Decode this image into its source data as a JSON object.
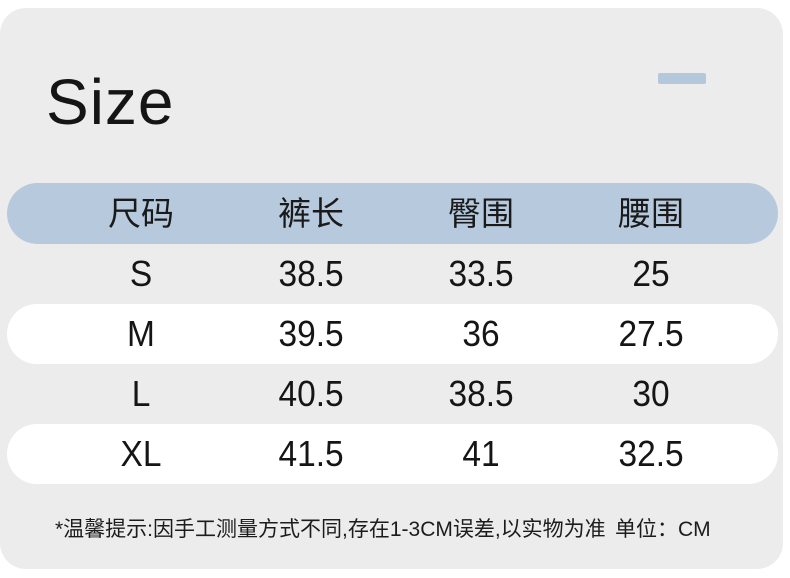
{
  "title": "Size",
  "colors": {
    "card_bg": "#ececec",
    "header_bg": "#b7c9dd",
    "dash": "#b4c8dc",
    "row_white": "#ffffff",
    "text": "#151515"
  },
  "table": {
    "headers": [
      "尺码",
      "裤长",
      "臀围",
      "腰围"
    ],
    "rows": [
      [
        "S",
        "38.5",
        "33.5",
        "25"
      ],
      [
        "M",
        "39.5",
        "36",
        "27.5"
      ],
      [
        "L",
        "40.5",
        "38.5",
        "30"
      ],
      [
        "XL",
        "41.5",
        "41",
        "32.5"
      ]
    ]
  },
  "footer": {
    "note": "*温馨提示:因手工测量方式不同,存在1-3CM误差,以实物为准",
    "unit": "单位：CM"
  }
}
